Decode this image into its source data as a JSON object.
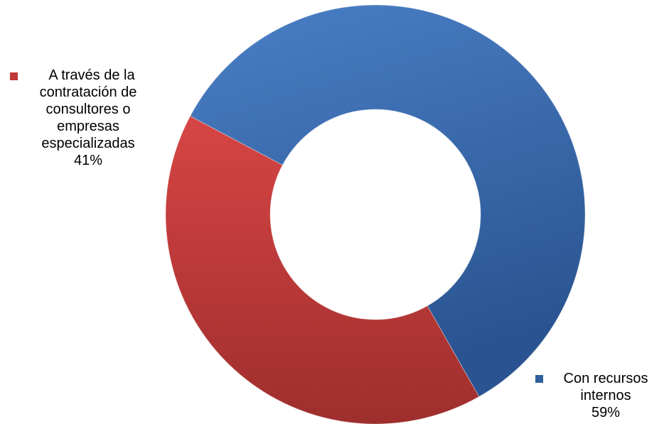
{
  "chart_data": {
    "type": "pie",
    "variant": "donut",
    "title": "",
    "slices": [
      {
        "label_lines": [
          "A través de la",
          "contratación de",
          "consultores o",
          "empresas",
          "especializadas"
        ],
        "value": 41,
        "value_label": "41%",
        "color": "#c0393a",
        "color_light": "#d64544",
        "color_dark": "#9e2e2d"
      },
      {
        "label_lines": [
          "Con recursos",
          "internos"
        ],
        "value": 59,
        "value_label": "59%",
        "color": "#2f5f9c",
        "color_light": "#4a7fc6",
        "color_dark": "#2a5491"
      }
    ],
    "legend": "labels-outside",
    "grid": false
  }
}
